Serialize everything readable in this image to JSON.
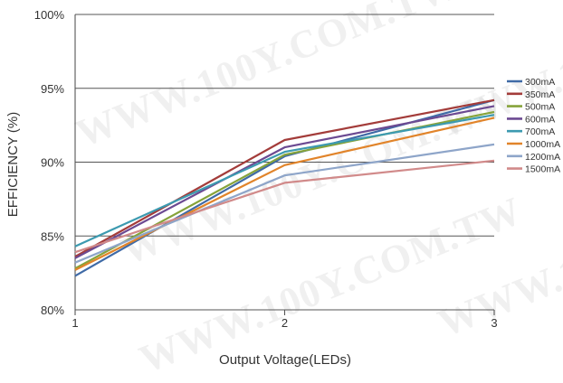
{
  "watermark": "WWW.100Y.COM.TW",
  "chart_data": {
    "type": "line",
    "x": [
      1,
      2,
      3
    ],
    "xlabel": "Output Voltage(LEDs)",
    "ylabel": "EFFICIENCY (%)",
    "xlim": [
      1,
      3
    ],
    "ylim": [
      80,
      100
    ],
    "xticks": [
      "1",
      "2",
      "3"
    ],
    "yticks": [
      {
        "value": 80,
        "label": "80%"
      },
      {
        "value": 85,
        "label": "85%"
      },
      {
        "value": 90,
        "label": "90%"
      },
      {
        "value": 95,
        "label": "95%"
      },
      {
        "value": 100,
        "label": "100%"
      }
    ],
    "grid": true,
    "legend_position": "right",
    "series": [
      {
        "name": "300mA",
        "color": "#3f6aa6",
        "values": [
          82.3,
          90.4,
          94.2
        ]
      },
      {
        "name": "350mA",
        "color": "#a33c3a",
        "values": [
          83.6,
          91.5,
          94.2
        ]
      },
      {
        "name": "500mA",
        "color": "#86a33a",
        "values": [
          82.8,
          90.5,
          93.4
        ]
      },
      {
        "name": "600mA",
        "color": "#6c4a92",
        "values": [
          83.5,
          91.0,
          93.8
        ]
      },
      {
        "name": "700mA",
        "color": "#3c9ab0",
        "values": [
          84.3,
          90.7,
          93.2
        ]
      },
      {
        "name": "1000mA",
        "color": "#e1842a",
        "values": [
          82.7,
          89.8,
          93.0
        ]
      },
      {
        "name": "1200mA",
        "color": "#8ea5c9",
        "values": [
          83.2,
          89.1,
          91.2
        ]
      },
      {
        "name": "1500mA",
        "color": "#d18a8a",
        "values": [
          83.9,
          88.6,
          90.1
        ]
      }
    ]
  }
}
